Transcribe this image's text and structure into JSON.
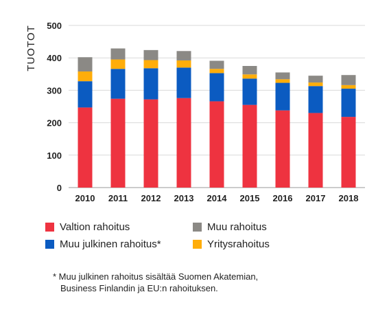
{
  "chart_data": {
    "type": "bar",
    "stacked": true,
    "ylabel": "TUOTOT",
    "xlabel": "",
    "ylim": [
      0,
      500
    ],
    "yticks": [
      0,
      100,
      200,
      300,
      400,
      500
    ],
    "grid": true,
    "legend_position": "bottom",
    "categories": [
      "2010",
      "2011",
      "2012",
      "2013",
      "2014",
      "2015",
      "2016",
      "2017",
      "2018"
    ],
    "series": [
      {
        "name": "Valtion rahoitus",
        "color": "#ee3340",
        "values": [
          247,
          274,
          272,
          276,
          266,
          255,
          238,
          230,
          218
        ]
      },
      {
        "name": "Muu julkinen rahoitus*",
        "color": "#0b5bc1",
        "values": [
          81,
          92,
          96,
          94,
          87,
          81,
          85,
          83,
          87
        ]
      },
      {
        "name": "Yritysrahoitus",
        "color": "#ffad0a",
        "values": [
          30,
          29,
          25,
          22,
          13,
          13,
          11,
          11,
          11
        ]
      },
      {
        "name": "Muu rahoitus",
        "color": "#8b8985",
        "values": [
          44,
          34,
          31,
          29,
          25,
          26,
          21,
          21,
          31
        ]
      }
    ]
  },
  "footnote": {
    "line1": "* Muu julkinen rahoitus sisältää Suomen Akatemian,",
    "line2": "Business Finlandin ja EU:n rahoituksen."
  }
}
